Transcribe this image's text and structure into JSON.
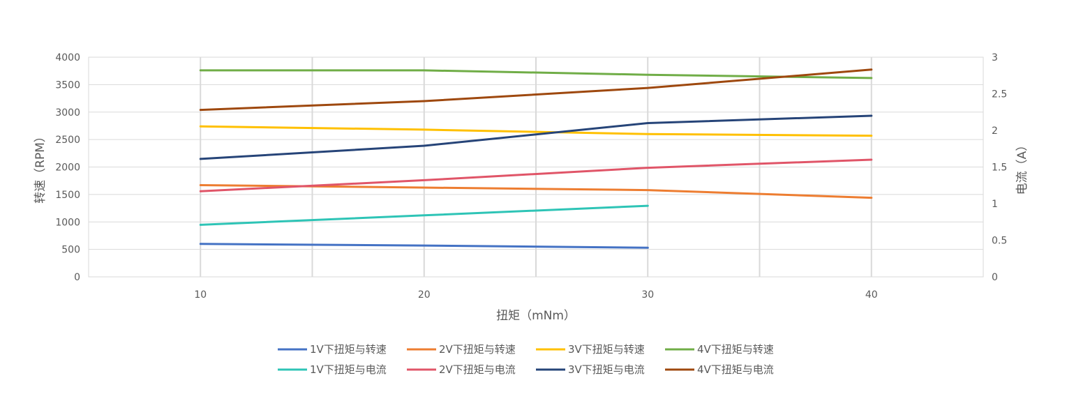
{
  "chart_data": {
    "type": "line",
    "xlabel": "扭矩（mNm）",
    "ylabel_left": "转速（RPM）",
    "ylabel_right": "电流（A）",
    "x_range": [
      5,
      45
    ],
    "x_ticks": [
      10,
      20,
      30,
      40
    ],
    "ylim_left": [
      0,
      4000
    ],
    "yticks_left": [
      0,
      500,
      1000,
      1500,
      2000,
      2500,
      3000,
      3500,
      4000
    ],
    "ylim_right": [
      0,
      3
    ],
    "yticks_right": [
      "0",
      "0.5",
      "1",
      "1.5",
      "2",
      "2.5",
      "3"
    ],
    "grid": true,
    "legend_position": "bottom",
    "series": [
      {
        "name": "1V下扭矩与转速",
        "axis": "left",
        "color": "#4472C4",
        "x": [
          10,
          20,
          30
        ],
        "y": [
          600,
          570,
          530
        ]
      },
      {
        "name": "2V下扭矩与转速",
        "axis": "left",
        "color": "#ED7D31",
        "x": [
          10,
          20,
          30,
          40
        ],
        "y": [
          1670,
          1625,
          1580,
          1440
        ]
      },
      {
        "name": "3V下扭矩与转速",
        "axis": "left",
        "color": "#FFC000",
        "x": [
          10,
          20,
          30,
          40
        ],
        "y": [
          2740,
          2680,
          2600,
          2570
        ]
      },
      {
        "name": "4V下扭矩与转速",
        "axis": "left",
        "color": "#70AD47",
        "x": [
          10,
          20,
          30,
          40
        ],
        "y": [
          3760,
          3760,
          3680,
          3620
        ]
      },
      {
        "name": "1V下扭矩与电流",
        "axis": "right",
        "color": "#2EC4B6",
        "x": [
          10,
          20,
          30
        ],
        "y": [
          0.71,
          0.84,
          0.97
        ]
      },
      {
        "name": "2V下扭矩与电流",
        "axis": "right",
        "color": "#E05568",
        "x": [
          10,
          20,
          30,
          40
        ],
        "y": [
          1.17,
          1.32,
          1.49,
          1.6
        ]
      },
      {
        "name": "3V下扭矩与电流",
        "axis": "right",
        "color": "#264478",
        "x": [
          10,
          20,
          30,
          40
        ],
        "y": [
          1.61,
          1.79,
          2.1,
          2.2
        ]
      },
      {
        "name": "4V下扭矩与电流",
        "axis": "right",
        "color": "#9E480E",
        "x": [
          10,
          20,
          30,
          40
        ],
        "y": [
          2.28,
          2.4,
          2.58,
          2.83
        ]
      }
    ]
  }
}
